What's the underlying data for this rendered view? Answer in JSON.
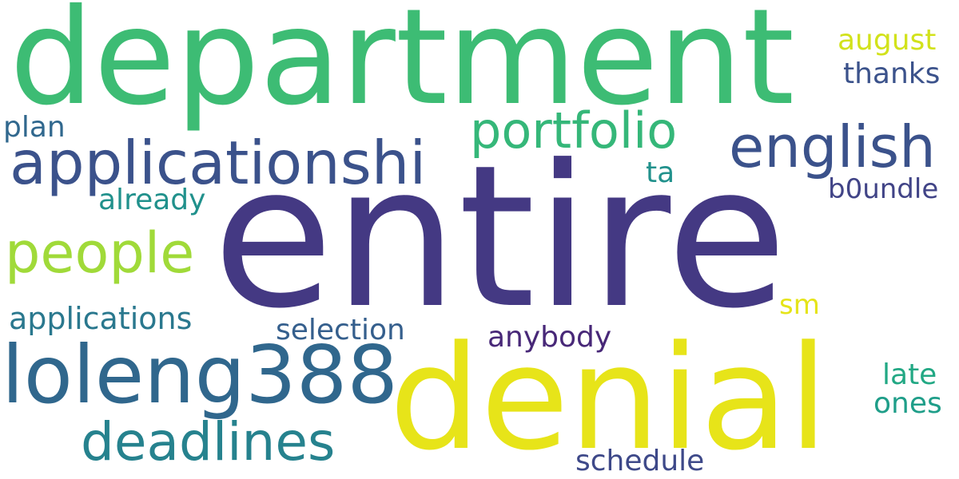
{
  "words": {
    "entire": "entire",
    "department": "department",
    "denial": "denial",
    "loleng388": "loleng388",
    "applicationshi": "applicationshi",
    "english": "english",
    "people": "people",
    "portfolio": "portfolio",
    "deadlines": "deadlines",
    "applications": "applications",
    "selection": "selection",
    "anybody": "anybody",
    "schedule": "schedule",
    "already": "already",
    "plan": "plan",
    "august": "august",
    "thanks": "thanks",
    "b0undle": "b0undle",
    "ta": "ta",
    "sm": "sm",
    "late": "late",
    "ones": "ones"
  },
  "colors": {
    "indigo": "#443983",
    "green": "#3dbc74",
    "yellow": "#e5e419",
    "lime": "#a0da39",
    "steel": "#31688e",
    "teal": "#26828e"
  }
}
